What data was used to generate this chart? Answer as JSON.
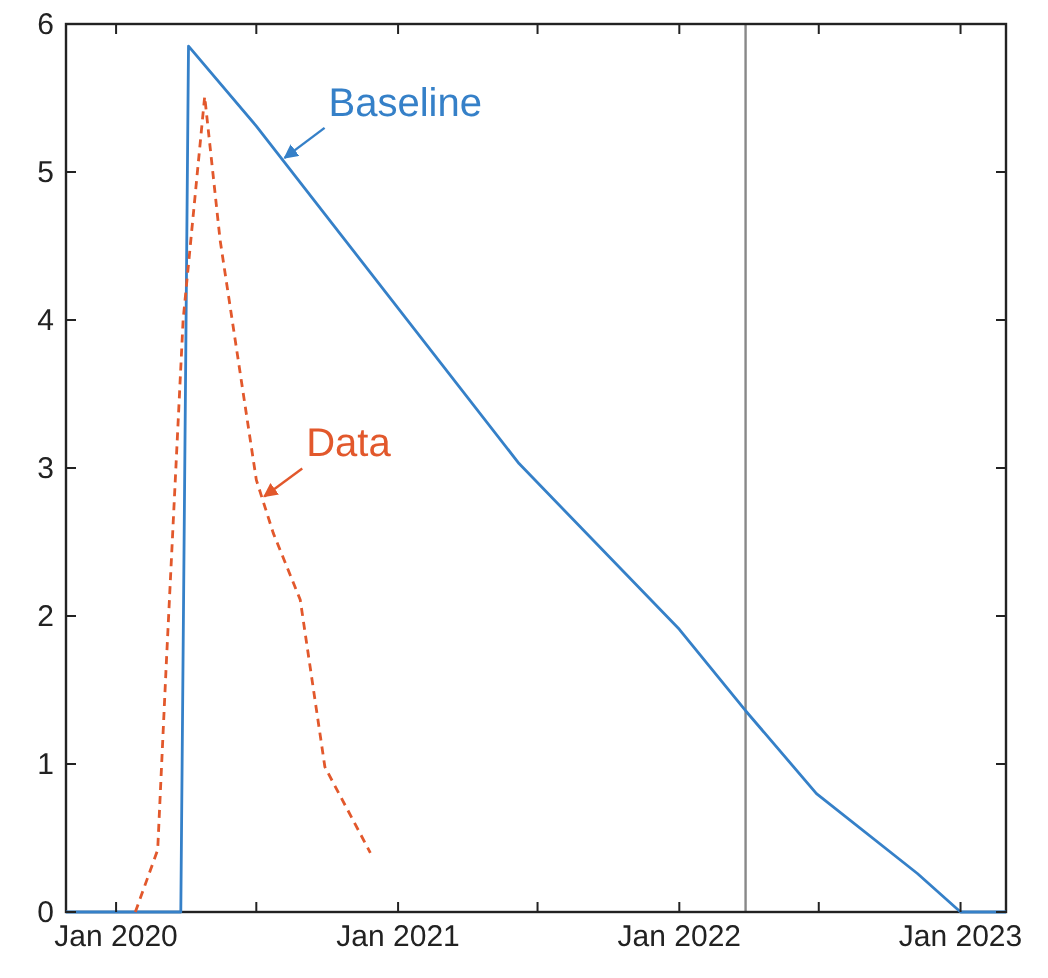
{
  "chart_data": {
    "type": "line",
    "xlim": [
      "2019-10-28",
      "2023-03-01"
    ],
    "xticks": [
      {
        "value": "2020-01-01",
        "label": "Jan 2020"
      },
      {
        "value": "2020-07-01",
        "label": null
      },
      {
        "value": "2021-01-01",
        "label": "Jan 2021"
      },
      {
        "value": "2021-07-01",
        "label": null
      },
      {
        "value": "2022-01-01",
        "label": "Jan 2022"
      },
      {
        "value": "2022-07-01",
        "label": null
      },
      {
        "value": "2023-01-01",
        "label": "Jan 2023"
      }
    ],
    "ylim": [
      0,
      6
    ],
    "yticks": [
      0,
      1,
      2,
      3,
      4,
      5,
      6
    ],
    "grid": false,
    "series": [
      {
        "name": "Baseline",
        "color": "#3580c8",
        "line_style": "solid",
        "x": [
          "2019-10-28",
          "2020-03-25",
          "2020-04-04",
          "2020-07-01",
          "2021-06-07",
          "2022-01-01",
          "2022-03-28",
          "2022-06-28",
          "2022-11-06",
          "2023-01-01",
          "2023-03-01"
        ],
        "values": [
          0,
          0,
          5.85,
          5.31,
          3.03,
          1.91,
          1.36,
          0.8,
          0.26,
          0,
          0
        ]
      },
      {
        "name": "Data",
        "color": "#e2582c",
        "line_style": "dashed",
        "x": [
          "2020-01-26",
          "2020-02-24",
          "2020-03-06",
          "2020-03-28",
          "2020-04-25",
          "2020-05-15",
          "2020-07-01",
          "2020-07-23",
          "2020-08-27",
          "2020-09-28",
          "2020-11-26"
        ],
        "values": [
          0,
          0.42,
          1.66,
          4.0,
          5.51,
          4.54,
          2.92,
          2.56,
          2.11,
          0.98,
          0.4
        ]
      }
    ],
    "ref_lines": [
      {
        "axis": "x",
        "value": "2022-03-28",
        "color": "#888888",
        "line_style": "solid"
      }
    ]
  }
}
